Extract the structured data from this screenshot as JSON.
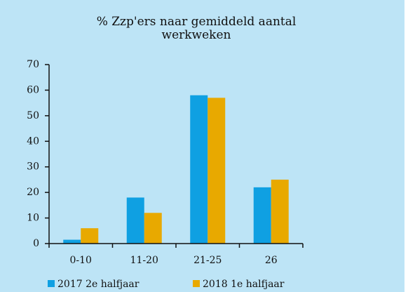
{
  "chart_data": {
    "type": "bar",
    "title": "% Zzp'ers naar gemiddeld aantal werkweken",
    "categories": [
      "0-10",
      "11-20",
      "21-25",
      "26"
    ],
    "series": [
      {
        "name": "2017 2e halfjaar",
        "color": "#0fa0e2",
        "values": [
          1.5,
          18,
          58,
          22
        ]
      },
      {
        "name": "2018 1e halfjaar",
        "color": "#e8a900",
        "values": [
          6,
          12,
          57,
          25
        ]
      }
    ],
    "ylim": [
      0,
      70
    ],
    "yticks": [
      0,
      10,
      20,
      30,
      40,
      50,
      60,
      70
    ],
    "grid": false,
    "legend": "bottom"
  }
}
